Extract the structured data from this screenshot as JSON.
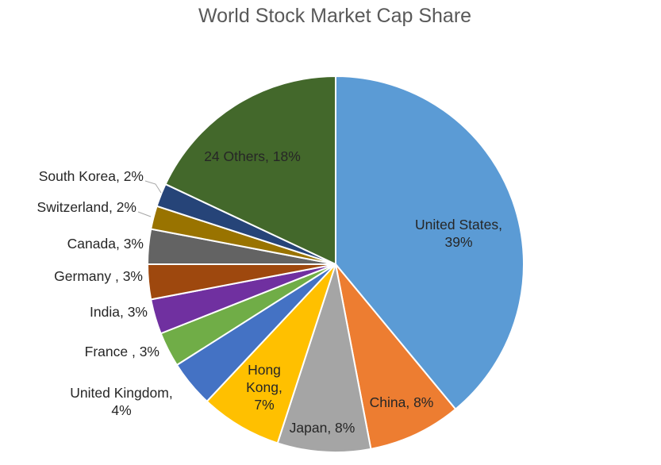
{
  "chart_data": {
    "type": "pie",
    "title": "World Stock Market Cap Share",
    "slices": [
      {
        "label": "United States",
        "value": 39,
        "value_label": "39%",
        "color": "#5b9bd5",
        "text": [
          "United States,",
          "39%"
        ]
      },
      {
        "label": "China",
        "value": 8,
        "value_label": "8%",
        "color": "#ed7d31",
        "text": [
          "China, 8%"
        ]
      },
      {
        "label": "Japan",
        "value": 8,
        "value_label": "8%",
        "color": "#a5a5a5",
        "text": [
          "Japan, 8%"
        ]
      },
      {
        "label": "Hong Kong",
        "value": 7,
        "value_label": "7%",
        "color": "#ffc000",
        "text": [
          "Hong",
          "Kong,",
          "7%"
        ]
      },
      {
        "label": "United Kingdom",
        "value": 4,
        "value_label": "4%",
        "color": "#4472c4",
        "text": [
          "United Kingdom,",
          "4%"
        ]
      },
      {
        "label": "France ",
        "value": 3,
        "value_label": "3%",
        "color": "#70ad47",
        "text": [
          "France , 3%"
        ]
      },
      {
        "label": "India",
        "value": 3,
        "value_label": "3%",
        "color": "#7030a0",
        "text": [
          "India, 3%"
        ]
      },
      {
        "label": "Germany ",
        "value": 3,
        "value_label": "3%",
        "color": "#9e480e",
        "text": [
          "Germany , 3%"
        ]
      },
      {
        "label": "Canada",
        "value": 3,
        "value_label": "3%",
        "color": "#636363",
        "text": [
          "Canada, 3%"
        ]
      },
      {
        "label": "Switzerland",
        "value": 2,
        "value_label": "2%",
        "color": "#997300",
        "text": [
          "Switzerland, 2%"
        ]
      },
      {
        "label": "South Korea",
        "value": 2,
        "value_label": "2%",
        "color": "#264478",
        "text": [
          "South Korea, 2%"
        ]
      },
      {
        "label": "24 Others",
        "value": 18,
        "value_label": "18%",
        "color": "#43682b",
        "text": [
          "24 Others, 18%"
        ]
      }
    ],
    "legend": "none",
    "start": "12 o'clock",
    "direction": "clockwise"
  }
}
